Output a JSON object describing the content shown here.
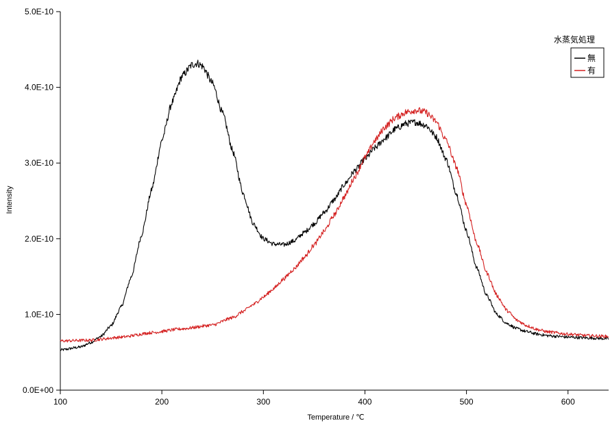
{
  "chart_data": {
    "type": "line",
    "xlabel": "Temperature / ℃",
    "ylabel": "Intensity",
    "xlim": [
      100,
      640
    ],
    "ylim": [
      0,
      5e-10
    ],
    "xticks": [
      100,
      200,
      300,
      400,
      500,
      600
    ],
    "xtick_labels": [
      "100",
      "200",
      "300",
      "400",
      "500",
      "600"
    ],
    "yticks": [
      0,
      1e-10,
      2e-10,
      3e-10,
      4e-10,
      5e-10
    ],
    "ytick_labels": [
      "0.0E+00",
      "1.0E-10",
      "2.0E-10",
      "3.0E-10",
      "4.0E-10",
      "5.0E-10"
    ],
    "grid": false,
    "legend": {
      "title": "水蒸気処理",
      "position": "top-right",
      "entries": [
        "無",
        "有"
      ]
    },
    "series": [
      {
        "name": "無",
        "color": "#000000",
        "x": [
          100,
          120,
          130,
          140,
          150,
          160,
          170,
          180,
          190,
          200,
          210,
          220,
          230,
          235,
          240,
          250,
          260,
          270,
          280,
          290,
          300,
          310,
          320,
          330,
          340,
          350,
          360,
          370,
          380,
          390,
          400,
          410,
          420,
          430,
          440,
          450,
          460,
          470,
          480,
          490,
          500,
          510,
          520,
          530,
          540,
          550,
          560,
          570,
          580,
          590,
          600,
          620,
          640
        ],
        "y": [
          5.3e-11,
          5.7e-11,
          6.3e-11,
          7.1e-11,
          8.5e-11,
          1.1e-10,
          1.5e-10,
          2.05e-10,
          2.65e-10,
          3.3e-10,
          3.8e-10,
          4.15e-10,
          4.3e-10,
          4.32e-10,
          4.28e-10,
          4.05e-10,
          3.65e-10,
          3.15e-10,
          2.6e-10,
          2.2e-10,
          2e-10,
          1.93e-10,
          1.92e-10,
          1.97e-10,
          2.08e-10,
          2.2e-10,
          2.35e-10,
          2.52e-10,
          2.72e-10,
          2.9e-10,
          3.05e-10,
          3.2e-10,
          3.33e-10,
          3.45e-10,
          3.52e-10,
          3.54e-10,
          3.5e-10,
          3.35e-10,
          3.05e-10,
          2.6e-10,
          2.1e-10,
          1.62e-10,
          1.25e-10,
          1e-10,
          8.8e-11,
          8.1e-11,
          7.7e-11,
          7.4e-11,
          7.2e-11,
          7.1e-11,
          7e-11,
          6.9e-11,
          6.8e-11
        ]
      },
      {
        "name": "有",
        "color": "#d42020",
        "x": [
          100,
          130,
          160,
          190,
          220,
          250,
          270,
          280,
          290,
          300,
          310,
          320,
          330,
          340,
          350,
          360,
          370,
          380,
          390,
          400,
          410,
          420,
          430,
          440,
          450,
          460,
          470,
          480,
          490,
          500,
          510,
          520,
          530,
          540,
          550,
          560,
          570,
          580,
          600,
          620,
          640
        ],
        "y": [
          6.5e-11,
          6.6e-11,
          7e-11,
          7.6e-11,
          8.1e-11,
          8.6e-11,
          9.6e-11,
          1.04e-10,
          1.13e-10,
          1.23e-10,
          1.34e-10,
          1.47e-10,
          1.6e-10,
          1.75e-10,
          1.92e-10,
          2.1e-10,
          2.32e-10,
          2.56e-10,
          2.82e-10,
          3.07e-10,
          3.3e-10,
          3.48e-10,
          3.6e-10,
          3.67e-10,
          3.7e-10,
          3.67e-10,
          3.55e-10,
          3.3e-10,
          2.95e-10,
          2.45e-10,
          1.95e-10,
          1.55e-10,
          1.25e-10,
          1.05e-10,
          9.2e-11,
          8.5e-11,
          8e-11,
          7.7e-11,
          7.4e-11,
          7.2e-11,
          7.1e-11
        ]
      }
    ]
  }
}
